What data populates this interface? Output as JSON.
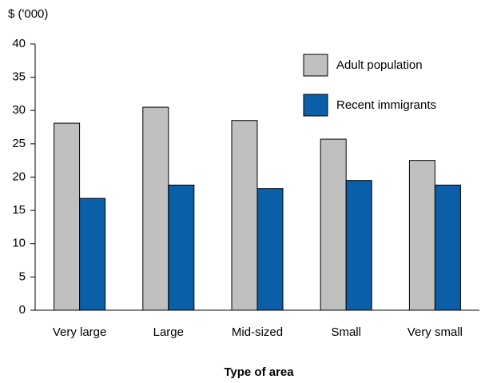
{
  "chart_data": {
    "type": "bar",
    "y_axis_label": "$ ('000)",
    "x_axis_label": "Type of area",
    "categories": [
      "Very large",
      "Large",
      "Mid-sized",
      "Small",
      "Very small"
    ],
    "series": [
      {
        "name": "Adult population",
        "color": "#c0c0c0",
        "values": [
          28.1,
          30.5,
          28.5,
          25.7,
          22.5
        ]
      },
      {
        "name": "Recent immigrants",
        "color": "#0b5ea8",
        "values": [
          16.8,
          18.8,
          18.3,
          19.5,
          18.8
        ]
      }
    ],
    "ylim": [
      0,
      40
    ],
    "yticks": [
      0,
      5,
      10,
      15,
      20,
      25,
      30,
      35,
      40
    ],
    "grid": false,
    "legend": "top-right"
  }
}
